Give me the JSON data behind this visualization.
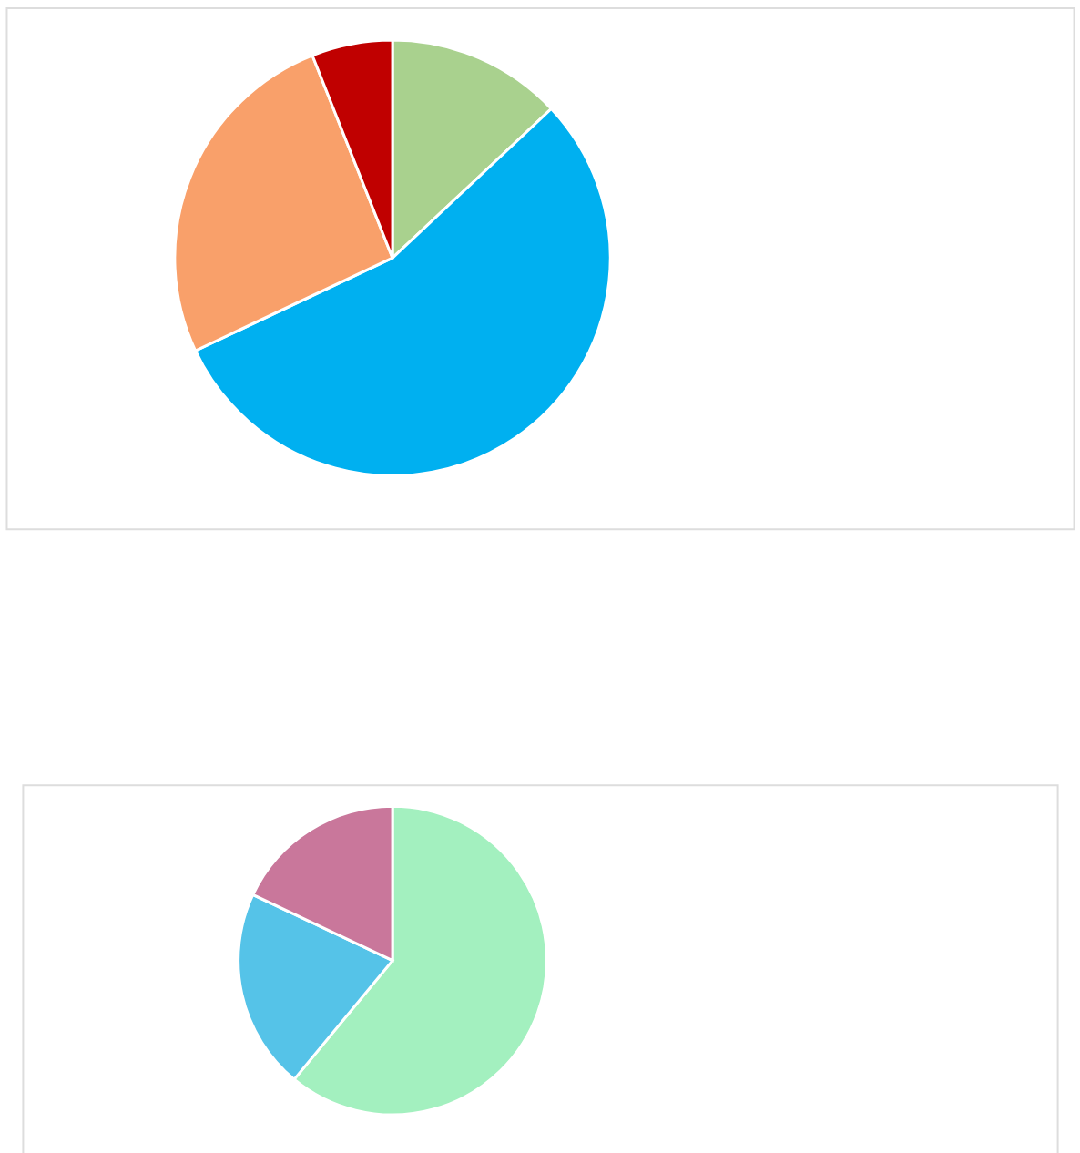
{
  "chart_data": [
    {
      "type": "pie",
      "categories": [
        null,
        null,
        null,
        null
      ],
      "values": [
        13,
        55,
        26,
        6
      ],
      "colors": [
        "#a9d18e",
        "#00b0f0",
        "#f9a06a",
        "#c00000"
      ]
    },
    {
      "type": "pie",
      "categories": [
        null,
        null,
        null
      ],
      "values": [
        61,
        21,
        18
      ],
      "colors": [
        "#a3f0bf",
        "#55c3e8",
        "#c9779b"
      ]
    }
  ]
}
